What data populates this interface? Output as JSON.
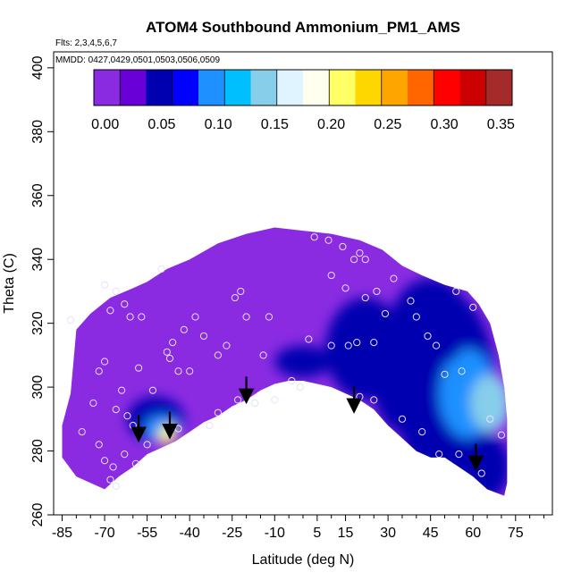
{
  "chart_data": {
    "type": "heatmap",
    "title": "ATOM4 Southbound Ammonium_PM1_AMS",
    "flights_label": "Flts: 2,3,4,5,6,7",
    "dates_label": "MMDD: 0427,0429,0501,0503,0506,0509",
    "xlabel": "Latitude (deg N)",
    "ylabel": "Theta (C)",
    "xlim": [
      -88,
      88
    ],
    "ylim": [
      260,
      405
    ],
    "x_tick_values": [
      -85,
      -70,
      -55,
      -40,
      -25,
      -10,
      5,
      15,
      30,
      45,
      60,
      75
    ],
    "x_tick_labels": [
      "-85",
      "-70",
      "-55",
      "-40",
      "-25",
      "-10",
      "5",
      "15",
      "30",
      "45",
      "60",
      "75"
    ],
    "y_tick_values": [
      260,
      280,
      300,
      320,
      340,
      360,
      380,
      400
    ],
    "y_tick_labels": [
      "260",
      "280",
      "300",
      "320",
      "340",
      "360",
      "380",
      "400"
    ],
    "colorbar": {
      "min": -0.01,
      "max": 0.36,
      "tick_values": [
        0.0,
        0.05,
        0.1,
        0.15,
        0.2,
        0.25,
        0.3,
        0.35
      ],
      "tick_labels": [
        "0.00",
        "0.05",
        "0.10",
        "0.15",
        "0.20",
        "0.25",
        "0.30",
        "0.35"
      ],
      "colors": [
        "#8a2be2",
        "#6a00d8",
        "#0000b0",
        "#0000ff",
        "#1e90ff",
        "#00bfff",
        "#87ceeb",
        "#e0f4ff",
        "#fffff0",
        "#ffff66",
        "#ffd700",
        "#ffa500",
        "#ff6600",
        "#ff0000",
        "#cc0000",
        "#a52a2a"
      ]
    },
    "domain_top": [
      [
        -85,
        288
      ],
      [
        -82,
        298
      ],
      [
        -80,
        318
      ],
      [
        -75,
        323
      ],
      [
        -68,
        328
      ],
      [
        -60,
        331
      ],
      [
        -55,
        333
      ],
      [
        -48,
        337
      ],
      [
        -40,
        340
      ],
      [
        -30,
        345
      ],
      [
        -20,
        348
      ],
      [
        -10,
        350
      ],
      [
        0,
        349
      ],
      [
        10,
        348
      ],
      [
        20,
        346
      ],
      [
        28,
        343
      ],
      [
        35,
        338
      ],
      [
        42,
        335
      ],
      [
        50,
        332
      ],
      [
        58,
        330
      ],
      [
        62,
        326
      ],
      [
        66,
        320
      ],
      [
        69,
        310
      ],
      [
        71,
        300
      ],
      [
        72,
        290
      ],
      [
        72,
        270
      ],
      [
        71,
        266
      ]
    ],
    "domain_bottom": [
      [
        71,
        266
      ],
      [
        65,
        268
      ],
      [
        60,
        272
      ],
      [
        55,
        275
      ],
      [
        50,
        278
      ],
      [
        45,
        278
      ],
      [
        40,
        280
      ],
      [
        35,
        284
      ],
      [
        30,
        288
      ],
      [
        25,
        293
      ],
      [
        20,
        296
      ],
      [
        15,
        298
      ],
      [
        10,
        300
      ],
      [
        5,
        301
      ],
      [
        0,
        302
      ],
      [
        -5,
        302
      ],
      [
        -10,
        301
      ],
      [
        -15,
        299
      ],
      [
        -20,
        296
      ],
      [
        -25,
        294
      ],
      [
        -30,
        291
      ],
      [
        -35,
        289
      ],
      [
        -40,
        286
      ],
      [
        -45,
        283
      ],
      [
        -50,
        281
      ],
      [
        -55,
        279
      ],
      [
        -60,
        275
      ],
      [
        -65,
        272
      ],
      [
        -70,
        268
      ],
      [
        -75,
        270
      ],
      [
        -80,
        272
      ],
      [
        -85,
        278
      ]
    ],
    "features": [
      {
        "x": 50,
        "y": 300,
        "rx": 18,
        "ry": 30,
        "value": 0.05
      },
      {
        "x": 58,
        "y": 298,
        "rx": 10,
        "ry": 14,
        "value": 0.09
      },
      {
        "x": 66,
        "y": 295,
        "rx": 7,
        "ry": 9,
        "value": 0.13
      },
      {
        "x": 45,
        "y": 320,
        "rx": 14,
        "ry": 14,
        "value": 0.05
      },
      {
        "x": 22,
        "y": 312,
        "rx": 14,
        "ry": 16,
        "value": 0.04
      },
      {
        "x": 35,
        "y": 300,
        "rx": 10,
        "ry": 14,
        "value": 0.04
      },
      {
        "x": 65,
        "y": 275,
        "rx": 8,
        "ry": 10,
        "value": 0.05
      },
      {
        "x": 0,
        "y": 308,
        "rx": 10,
        "ry": 5,
        "value": 0.045
      },
      {
        "x": -52,
        "y": 290,
        "rx": 10,
        "ry": 7,
        "value": 0.045
      },
      {
        "x": -50,
        "y": 287,
        "rx": 6,
        "ry": 4,
        "value": 0.1
      },
      {
        "x": -48,
        "y": 285,
        "rx": 3,
        "ry": 3,
        "value": 0.22
      }
    ],
    "sample_points": [
      [
        -82,
        321
      ],
      [
        -78,
        286
      ],
      [
        -74,
        295
      ],
      [
        -70,
        332
      ],
      [
        -68,
        324
      ],
      [
        -66,
        330
      ],
      [
        -63,
        326
      ],
      [
        -61,
        322
      ],
      [
        -57,
        322
      ],
      [
        -72,
        305
      ],
      [
        -70,
        308
      ],
      [
        -66,
        293
      ],
      [
        -64,
        299
      ],
      [
        -62,
        291
      ],
      [
        -60,
        288
      ],
      [
        -58,
        306
      ],
      [
        -55,
        282
      ],
      [
        -53,
        299
      ],
      [
        -50,
        337
      ],
      [
        -48,
        311
      ],
      [
        -47,
        309
      ],
      [
        -46,
        314
      ],
      [
        -44,
        305
      ],
      [
        -42,
        318
      ],
      [
        -40,
        305
      ],
      [
        -38,
        322
      ],
      [
        -35,
        316
      ],
      [
        -33,
        288
      ],
      [
        -30,
        310
      ],
      [
        -27,
        313
      ],
      [
        -24,
        328
      ],
      [
        -22,
        330
      ],
      [
        -20,
        322
      ],
      [
        -17,
        295
      ],
      [
        -14,
        310
      ],
      [
        -12,
        322
      ],
      [
        -10,
        296
      ],
      [
        -4,
        302
      ],
      [
        -1,
        300
      ],
      [
        2,
        315
      ],
      [
        4,
        347
      ],
      [
        9,
        346
      ],
      [
        14,
        344
      ],
      [
        18,
        340
      ],
      [
        20,
        342
      ],
      [
        22,
        340
      ],
      [
        15,
        331
      ],
      [
        22,
        328
      ],
      [
        10,
        335
      ],
      [
        29,
        323
      ],
      [
        25,
        314
      ],
      [
        19,
        314
      ],
      [
        16,
        313
      ],
      [
        10,
        313
      ],
      [
        25,
        296
      ],
      [
        20,
        297
      ],
      [
        26,
        330
      ],
      [
        32,
        334
      ],
      [
        38,
        327
      ],
      [
        40,
        322
      ],
      [
        44,
        316
      ],
      [
        47,
        313
      ],
      [
        50,
        304
      ],
      [
        54,
        330
      ],
      [
        56,
        305
      ],
      [
        60,
        325
      ],
      [
        66,
        290
      ],
      [
        70,
        285
      ],
      [
        35,
        290
      ],
      [
        42,
        286
      ],
      [
        48,
        279
      ],
      [
        55,
        279
      ],
      [
        63,
        273
      ],
      [
        -70,
        277
      ],
      [
        -67,
        275
      ],
      [
        -63,
        279
      ],
      [
        -72,
        282
      ],
      [
        -59,
        276
      ],
      [
        -66,
        269
      ],
      [
        -68,
        271
      ],
      [
        -44,
        287
      ],
      [
        -30,
        292
      ],
      [
        -23,
        296
      ]
    ],
    "arrow_positions": [
      [
        -58,
        284
      ],
      [
        -47,
        285
      ],
      [
        -20,
        296
      ],
      [
        18,
        293
      ],
      [
        61,
        275
      ]
    ]
  }
}
